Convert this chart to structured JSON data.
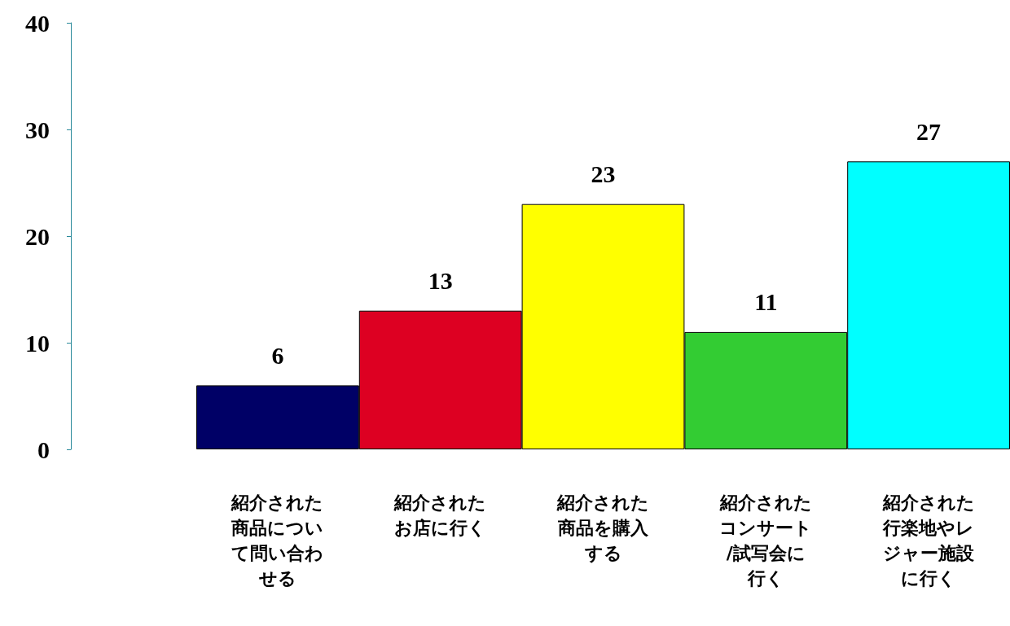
{
  "chart_data": {
    "type": "bar",
    "categories": [
      "紹介された商品について問い合わせる",
      "紹介されたお店に行く",
      "紹介された商品を購入する",
      "紹介されたコンサート/試写会に行く",
      "紹介された行楽地やレジャー施設に行く"
    ],
    "values": [
      6,
      13,
      23,
      11,
      27
    ],
    "colors": [
      "#000066",
      "#dd0022",
      "#ffff00",
      "#33cc33",
      "#00ffff"
    ],
    "ylim": [
      0,
      40
    ],
    "yticks": [
      0,
      10,
      20,
      30,
      40
    ],
    "grid": false,
    "data_labels": true
  }
}
